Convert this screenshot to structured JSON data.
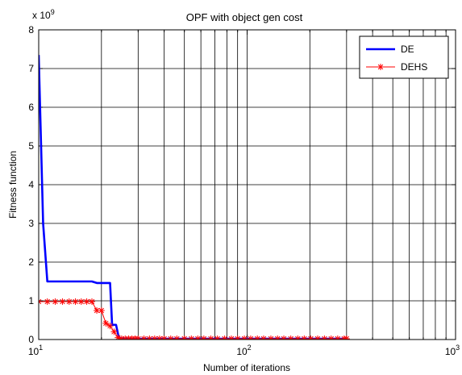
{
  "chart_data": {
    "type": "line",
    "title": "OPF with object gen cost",
    "xlabel": "Number of iterations",
    "ylabel": "Fitness function",
    "xscale": "log",
    "yscale": "linear",
    "xlim": [
      10,
      1000
    ],
    "ylim": [
      0,
      8
    ],
    "y_multiplier_label": {
      "base": "x 10",
      "exponent": "9"
    },
    "x_ticks": [
      {
        "value": 10,
        "base": "10",
        "exp": "1"
      },
      {
        "value": 100,
        "base": "10",
        "exp": "2"
      },
      {
        "value": 1000,
        "base": "10",
        "exp": "3"
      }
    ],
    "y_ticks": [
      {
        "value": 0,
        "label": "0"
      },
      {
        "value": 1,
        "label": "1"
      },
      {
        "value": 2,
        "label": "2"
      },
      {
        "value": 3,
        "label": "3"
      },
      {
        "value": 4,
        "label": "4"
      },
      {
        "value": 5,
        "label": "5"
      },
      {
        "value": 6,
        "label": "6"
      },
      {
        "value": 7,
        "label": "7"
      },
      {
        "value": 8,
        "label": "8"
      }
    ],
    "grid": true,
    "legend_position": "top-right",
    "series": [
      {
        "name": "DE",
        "color": "#0000ff",
        "line_style": "solid",
        "marker": "none",
        "points": [
          [
            10,
            7.35
          ],
          [
            10.5,
            3.0
          ],
          [
            11,
            1.5
          ],
          [
            12,
            1.5
          ],
          [
            14,
            1.5
          ],
          [
            16,
            1.5
          ],
          [
            18,
            1.5
          ],
          [
            19,
            1.46
          ],
          [
            20,
            1.46
          ],
          [
            21,
            1.46
          ],
          [
            22,
            1.46
          ],
          [
            22.5,
            0.38
          ],
          [
            23.5,
            0.38
          ],
          [
            24.2,
            0.06
          ],
          [
            25,
            0.03
          ],
          [
            30,
            0.02
          ],
          [
            50,
            0.02
          ],
          [
            100,
            0.02
          ],
          [
            200,
            0.02
          ],
          [
            300,
            0.02
          ]
        ]
      },
      {
        "name": "DEHS",
        "color": "#ff0000",
        "line_style": "solid",
        "marker": "asterisk",
        "points": [
          [
            10,
            0.98
          ],
          [
            11,
            0.98
          ],
          [
            12,
            0.98
          ],
          [
            13,
            0.98
          ],
          [
            14,
            0.98
          ],
          [
            15,
            0.98
          ],
          [
            16,
            0.98
          ],
          [
            17,
            0.98
          ],
          [
            18,
            0.98
          ],
          [
            19,
            0.75
          ],
          [
            20,
            0.75
          ],
          [
            21,
            0.42
          ],
          [
            22,
            0.35
          ],
          [
            23,
            0.2
          ],
          [
            24,
            0.05
          ],
          [
            25,
            0.02
          ],
          [
            26,
            0.02
          ],
          [
            27,
            0.02
          ],
          [
            28,
            0.02
          ],
          [
            29,
            0.02
          ],
          [
            30,
            0.02
          ],
          [
            32,
            0.02
          ],
          [
            34,
            0.02
          ],
          [
            36,
            0.02
          ],
          [
            38,
            0.02
          ],
          [
            40,
            0.02
          ],
          [
            43,
            0.02
          ],
          [
            46,
            0.02
          ],
          [
            50,
            0.02
          ],
          [
            54,
            0.02
          ],
          [
            58,
            0.02
          ],
          [
            62,
            0.02
          ],
          [
            67,
            0.02
          ],
          [
            72,
            0.02
          ],
          [
            78,
            0.02
          ],
          [
            84,
            0.02
          ],
          [
            90,
            0.02
          ],
          [
            97,
            0.02
          ],
          [
            104,
            0.02
          ],
          [
            112,
            0.02
          ],
          [
            120,
            0.02
          ],
          [
            130,
            0.02
          ],
          [
            140,
            0.02
          ],
          [
            150,
            0.02
          ],
          [
            162,
            0.02
          ],
          [
            175,
            0.02
          ],
          [
            188,
            0.02
          ],
          [
            202,
            0.02
          ],
          [
            218,
            0.02
          ],
          [
            235,
            0.02
          ],
          [
            253,
            0.02
          ],
          [
            272,
            0.02
          ],
          [
            292,
            0.02
          ],
          [
            300,
            0.02
          ]
        ]
      }
    ]
  }
}
